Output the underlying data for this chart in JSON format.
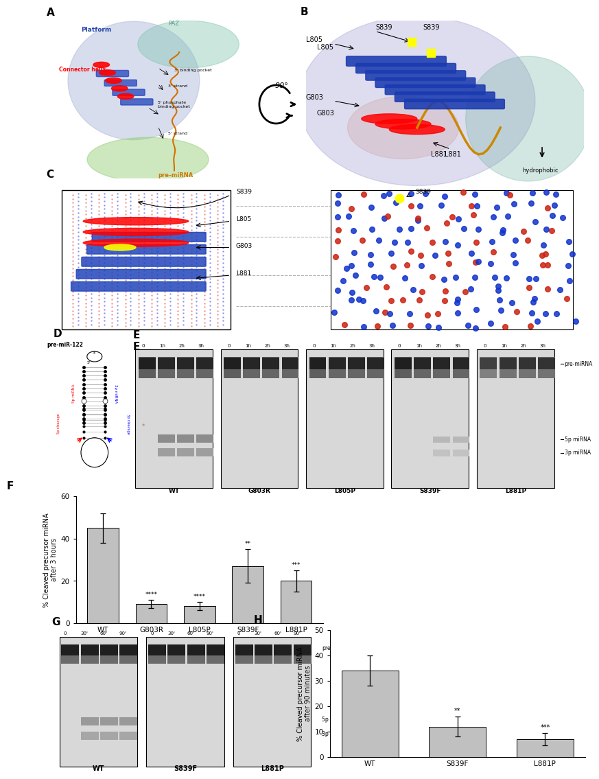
{
  "panel_F": {
    "categories": [
      "WT",
      "G803R",
      "L805P",
      "S839F",
      "L881P"
    ],
    "values": [
      45,
      9,
      8,
      27,
      20
    ],
    "errors": [
      7,
      2,
      2,
      8,
      5
    ],
    "bar_color": "#c0c0c0",
    "ylabel": "% Cleaved precursor miRNA\nafter 3 hours",
    "ylim": [
      0,
      60
    ],
    "yticks": [
      0,
      20,
      40,
      60
    ],
    "significance": [
      "",
      "****",
      "****",
      "**",
      "***"
    ]
  },
  "panel_H": {
    "categories": [
      "WT",
      "S839F",
      "L881P"
    ],
    "values": [
      34,
      12,
      7
    ],
    "errors": [
      6,
      4,
      2.5
    ],
    "bar_color": "#c0c0c0",
    "ylabel": "% Cleaved precursor miRNA\nafter 90 minutes",
    "ylim": [
      0,
      50
    ],
    "yticks": [
      0,
      10,
      20,
      30,
      40,
      50
    ],
    "significance": [
      "",
      "**",
      "***"
    ]
  },
  "panel_E_lanes": [
    "WT",
    "G803R",
    "L805P",
    "S839F",
    "L881P"
  ],
  "panel_E_timepoints": [
    "0",
    "1h",
    "2h",
    "3h"
  ],
  "panel_G_lanes": [
    "WT",
    "S839F",
    "L881P"
  ],
  "panel_G_timepoints": [
    "0",
    "30'",
    "60'",
    "90'"
  ],
  "gel_labels_right": [
    "pre-miRNA",
    "5p miRNA",
    "3p miRNA"
  ],
  "figure_width": 7.77,
  "figure_height": 11.02,
  "bg": "#ffffff"
}
